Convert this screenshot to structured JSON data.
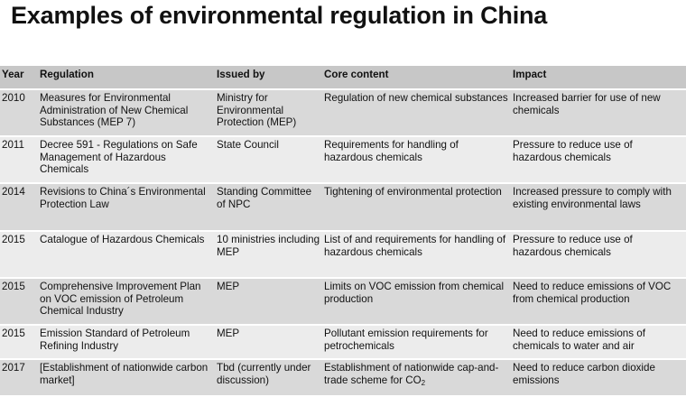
{
  "title": "Examples of environmental regulation in China",
  "table": {
    "headers": [
      "Year",
      "Regulation",
      "Issued by",
      "Core content",
      "Impact"
    ],
    "rows": [
      {
        "year": "2010",
        "regulation": "Measures for Environmental Administration of New Chemical Substances (MEP 7)",
        "issued_by": "Ministry for Environmental Protection  (MEP)",
        "core_content": "Regulation of new chemical substances",
        "impact": "Increased barrier for use of new chemicals"
      },
      {
        "year": "2011",
        "regulation": "Decree 591 - Regulations on Safe Management of Hazardous Chemicals",
        "issued_by": "State Council",
        "core_content": "Requirements for handling of hazardous chemicals",
        "impact": "Pressure to reduce use of hazardous chemicals"
      },
      {
        "year": "2014",
        "regulation": "Revisions to China´s Environmental Protection Law",
        "issued_by": "Standing Committee of NPC",
        "core_content": "Tightening of environmental protection",
        "impact": "Increased pressure to comply with existing environmental laws"
      },
      {
        "year": "2015",
        "regulation": "Catalogue of Hazardous Chemicals",
        "issued_by": "10 ministries including MEP",
        "core_content": "List of and requirements for handling of hazardous chemicals",
        "impact": "Pressure to reduce use of hazardous chemicals"
      },
      {
        "year": "2015",
        "regulation": "Comprehensive Improvement Plan on VOC emission of Petroleum Chemical Industry",
        "issued_by": "MEP",
        "core_content": "Limits on VOC emission from chemical production",
        "impact": "Need to reduce emissions of VOC from chemical production"
      },
      {
        "year": "2015",
        "regulation": "Emission Standard of Petroleum Refining Industry",
        "issued_by": "MEP",
        "core_content": "Pollutant emission requirements for petrochemicals",
        "impact": "Need to reduce emissions of chemicals to water and air"
      },
      {
        "year": "2017",
        "regulation": "[Establishment of nationwide carbon market]",
        "issued_by": "Tbd (currently under discussion)",
        "core_content_main": "Establishment of nationwide cap-and-trade scheme for CO",
        "core_content_sub": "2",
        "impact": "Need to reduce carbon dioxide emissions"
      }
    ]
  }
}
